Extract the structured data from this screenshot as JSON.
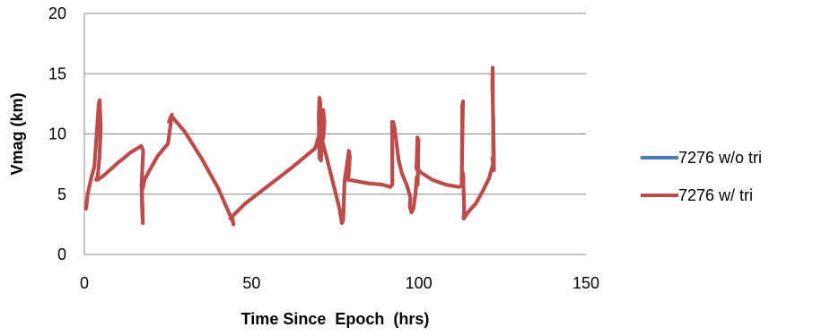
{
  "chart_data": {
    "type": "line",
    "title": "",
    "xlabel": "Time Since  Epoch  (hrs)",
    "ylabel": "Vmag (km)",
    "xlim": [
      0,
      150
    ],
    "ylim": [
      0,
      20
    ],
    "x_ticks": [
      "0",
      "50",
      "100",
      "150"
    ],
    "y_ticks": [
      "0",
      "5",
      "10",
      "15",
      "20"
    ],
    "grid": "horizontal",
    "legend_position": "right",
    "series": [
      {
        "name": "7276 w/o tri",
        "color": "#4a7ebb",
        "x": [
          0.5,
          1.0,
          2.0,
          3.0,
          3.8,
          4.3,
          4.6,
          4.9,
          4.5,
          4.0,
          3.5,
          4.0,
          6.0,
          10.0,
          14.0,
          17.0,
          17.6,
          17.4,
          17.2,
          17.1,
          17.3,
          17.5,
          17.4,
          17.2,
          17.5,
          18.0,
          19.5,
          22.0,
          25.0,
          26.2,
          25.7,
          25.3,
          26.0,
          30.0,
          35.0,
          40.0,
          43.5,
          44.3,
          44.6,
          44.2,
          43.6,
          44.0,
          48.0,
          55.0,
          62.0,
          69.0,
          70.2,
          70.6,
          70.3,
          70.1,
          70.3,
          70.8,
          71.4,
          71.8,
          71.4,
          70.8,
          70.4,
          71.0,
          72.5,
          74.5,
          76.3,
          77.0,
          77.4,
          77.8,
          78.5,
          79.1,
          79.4,
          79.0,
          78.7,
          79.0,
          81.0,
          85.0,
          89.0,
          91.5,
          92.1,
          92.0,
          92.3,
          92.8,
          93.3,
          94.0,
          95.0,
          96.5,
          97.5,
          97.3,
          97.8,
          98.4,
          99.0,
          99.4,
          99.7,
          99.9,
          99.6,
          99.3,
          99.7,
          100.6,
          104.0,
          108.0,
          112.0,
          112.8,
          113.2,
          113.0,
          112.9,
          113.3,
          113.6,
          113.4,
          113.6,
          114.0,
          115.0,
          117.0,
          119.0,
          121.0,
          122.0,
          122.3,
          122.1,
          122.0,
          122.3,
          122.5,
          122.3,
          122.0,
          122.0
        ],
        "y": [
          3.8,
          5.0,
          6.3,
          7.3,
          10.5,
          12.5,
          12.8,
          10.5,
          8.0,
          6.5,
          6.2,
          6.2,
          6.6,
          7.6,
          8.5,
          9.0,
          8.6,
          7.5,
          6.2,
          5.8,
          3.5,
          2.6,
          3.8,
          5.5,
          5.5,
          6.2,
          7.0,
          8.2,
          9.2,
          11.6,
          11.3,
          11.0,
          11.5,
          10.2,
          8.0,
          5.5,
          3.3,
          2.8,
          2.5,
          3.1,
          3.0,
          3.1,
          4.2,
          5.7,
          7.2,
          8.8,
          9.9,
          12.5,
          13.0,
          11.5,
          8.0,
          7.8,
          12.0,
          11.0,
          9.6,
          9.6,
          9.8,
          9.6,
          8.0,
          5.8,
          3.8,
          2.6,
          2.8,
          6.0,
          7.4,
          8.6,
          8.1,
          6.5,
          6.2,
          6.2,
          6.1,
          5.9,
          5.8,
          5.6,
          5.8,
          11.0,
          11.0,
          10.5,
          9.3,
          7.8,
          6.7,
          5.7,
          4.7,
          4.0,
          3.5,
          3.8,
          5.0,
          6.4,
          5.8,
          9.5,
          9.7,
          7.1,
          7.1,
          6.8,
          6.2,
          5.8,
          5.6,
          5.7,
          12.7,
          12.3,
          7.0,
          6.6,
          3.5,
          3.0,
          3.0,
          3.2,
          3.6,
          4.2,
          5.2,
          6.3,
          7.3,
          7.7,
          15.5,
          14.0,
          11.0,
          7.0,
          7.4,
          8.0,
          8.0
        ]
      },
      {
        "name": "7276 w/ tri",
        "color": "#be4b48",
        "x": [
          0.5,
          1.0,
          2.0,
          3.0,
          3.8,
          4.3,
          4.6,
          4.9,
          4.5,
          4.0,
          3.5,
          4.0,
          6.0,
          10.0,
          14.0,
          17.0,
          17.6,
          17.4,
          17.2,
          17.1,
          17.3,
          17.5,
          17.4,
          17.2,
          17.5,
          18.0,
          19.5,
          22.0,
          25.0,
          26.2,
          25.7,
          25.3,
          26.0,
          30.0,
          35.0,
          40.0,
          43.5,
          44.3,
          44.6,
          44.2,
          43.6,
          44.0,
          48.0,
          55.0,
          62.0,
          69.0,
          70.2,
          70.6,
          70.3,
          70.1,
          70.3,
          70.8,
          71.4,
          71.8,
          71.4,
          70.8,
          70.4,
          71.0,
          72.5,
          74.5,
          76.3,
          77.0,
          77.4,
          77.8,
          78.5,
          79.1,
          79.4,
          79.0,
          78.7,
          79.0,
          81.0,
          85.0,
          89.0,
          91.5,
          92.1,
          92.0,
          92.3,
          92.8,
          93.3,
          94.0,
          95.0,
          96.5,
          97.5,
          97.3,
          97.8,
          98.4,
          99.0,
          99.4,
          99.7,
          99.9,
          99.6,
          99.3,
          99.7,
          100.6,
          104.0,
          108.0,
          112.0,
          112.8,
          113.2,
          113.0,
          112.9,
          113.3,
          113.6,
          113.4,
          113.6,
          114.0,
          115.0,
          117.0,
          119.0,
          121.0,
          122.0,
          122.3,
          122.1,
          122.0,
          122.3,
          122.5,
          122.3,
          122.0,
          122.0
        ],
        "y": [
          3.8,
          5.0,
          6.3,
          7.3,
          10.5,
          12.5,
          12.8,
          10.5,
          8.0,
          6.5,
          6.2,
          6.2,
          6.6,
          7.6,
          8.5,
          9.0,
          8.6,
          7.5,
          6.2,
          5.8,
          3.5,
          2.6,
          3.8,
          5.5,
          5.5,
          6.2,
          7.0,
          8.2,
          9.2,
          11.6,
          11.3,
          11.0,
          11.5,
          10.2,
          8.0,
          5.5,
          3.3,
          2.8,
          2.5,
          3.1,
          3.0,
          3.1,
          4.2,
          5.7,
          7.2,
          8.8,
          9.9,
          12.5,
          13.0,
          11.5,
          8.0,
          7.8,
          12.0,
          11.0,
          9.6,
          9.6,
          9.8,
          9.6,
          8.0,
          5.8,
          3.8,
          2.6,
          2.8,
          6.0,
          7.4,
          8.6,
          8.1,
          6.5,
          6.2,
          6.2,
          6.1,
          5.9,
          5.8,
          5.6,
          5.8,
          11.0,
          11.0,
          10.5,
          9.3,
          7.8,
          6.7,
          5.7,
          4.7,
          4.0,
          3.5,
          3.8,
          5.0,
          6.4,
          5.8,
          9.5,
          9.7,
          7.1,
          7.1,
          6.8,
          6.2,
          5.8,
          5.6,
          5.7,
          12.7,
          12.3,
          7.0,
          6.6,
          3.5,
          3.0,
          3.0,
          3.2,
          3.6,
          4.2,
          5.2,
          6.3,
          7.3,
          7.7,
          15.5,
          14.0,
          11.0,
          7.0,
          7.4,
          8.0,
          8.0
        ]
      }
    ]
  }
}
